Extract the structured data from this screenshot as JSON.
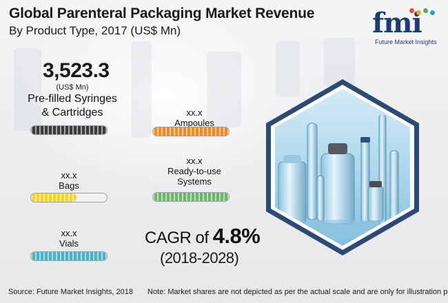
{
  "header": {
    "title": "Global Parenteral Packaging Market Revenue",
    "subtitle": "By Product Type, 2017 (US$ Mn)"
  },
  "logo": {
    "text": "fmi",
    "tagline": "Future Market Insights",
    "dot_colors": [
      "#e94b3c",
      "#f6a623",
      "#4caf50",
      "#2e9fd6"
    ]
  },
  "segments": {
    "syringes": {
      "value": "3,523.3",
      "unit": "(US$ Mn)",
      "label_line1": "Pre-filled Syringes",
      "label_line2": "& Cartridges",
      "bar_color": "#3a3a3a",
      "fill_fraction": 1.0
    },
    "ampoules": {
      "value": "xx.x",
      "label": "Ampoules",
      "bar_color": "#ef8a25",
      "fill_fraction": 1.0
    },
    "bags": {
      "value": "xx.x",
      "label": "Bags",
      "bar_color": "#f5d22e",
      "fill_fraction": 0.6
    },
    "systems": {
      "value": "xx.x",
      "label_line1": "Ready-to-use",
      "label_line2": "Systems",
      "bar_color": "#6cb86a",
      "fill_fraction": 1.0
    },
    "vials": {
      "value": "xx.x",
      "label": "Vials",
      "bar_color": "#45b5c4",
      "fill_fraction": 1.0
    }
  },
  "cagr": {
    "prefix": "CAGR of ",
    "value": "4.8%",
    "period": "(2018-2028)"
  },
  "footer": {
    "source": "Source: Future Market Insights, 2018",
    "note": "Note: Market shares are not depicted as per the actual scale and are only for illustration purposes."
  },
  "colors": {
    "hex_border": "#2c4a73",
    "hex_inner": "#a9d7ec",
    "logo_blue": "#1f3c6e"
  }
}
